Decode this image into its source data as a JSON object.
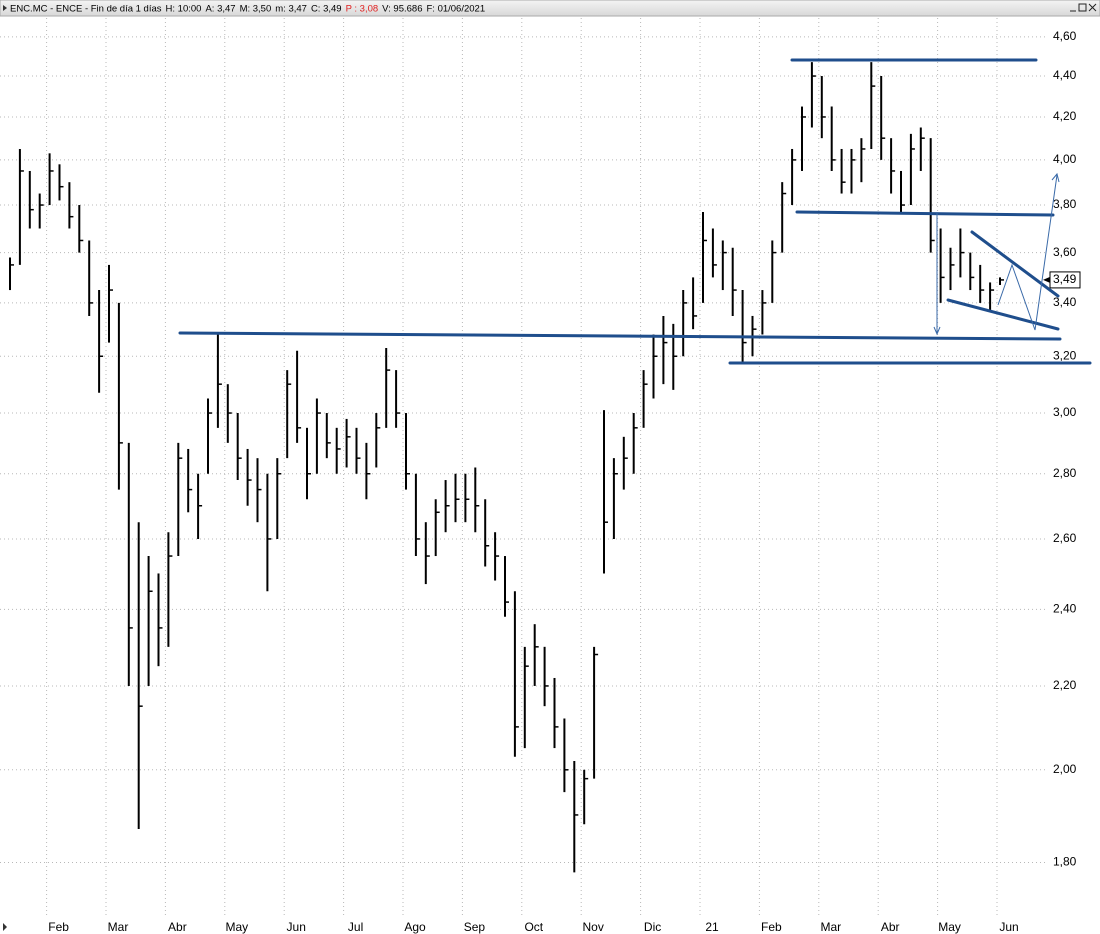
{
  "window": {
    "title_parts": [
      "ENC.MC - ENCE - Fin de día 1 días",
      "H: 10:00",
      "A: 3,47",
      "M: 3,50",
      "m: 3,47",
      "C: 3,49",
      "P : 3,08",
      "V: 95.686",
      "F: 01/06/2021"
    ],
    "highlight": "P : 3,08"
  },
  "chart_data": {
    "type": "ohlc",
    "log_scale": true,
    "grid": true,
    "color": "#000000",
    "categories": [
      null,
      null,
      null,
      null,
      "Feb",
      null,
      null,
      null,
      null,
      null,
      "Mar",
      null,
      null,
      null,
      null,
      null,
      "Abr",
      null,
      null,
      null,
      null,
      null,
      "May",
      null,
      null,
      null,
      null,
      null,
      "Jun",
      null,
      null,
      null,
      null,
      null,
      "Jul",
      null,
      null,
      null,
      null,
      null,
      "Ago",
      null,
      null,
      null,
      null,
      null,
      "Sep",
      null,
      null,
      null,
      null,
      null,
      "Oct",
      null,
      null,
      null,
      null,
      null,
      "Nov",
      null,
      null,
      null,
      null,
      null,
      "Dic",
      null,
      null,
      null,
      null,
      null,
      "21",
      null,
      null,
      null,
      null,
      null,
      "Feb",
      null,
      null,
      null,
      null,
      null,
      "Mar",
      null,
      null,
      null,
      null,
      null,
      "Abr",
      null,
      null,
      null,
      null,
      null,
      "May",
      null,
      null,
      null,
      null,
      null,
      "Jun"
    ],
    "series": [
      {
        "name": "High",
        "values": [
          3.58,
          4.05,
          3.95,
          3.85,
          4.03,
          3.98,
          3.9,
          3.8,
          3.65,
          3.45,
          3.55,
          3.4,
          2.9,
          2.65,
          2.55,
          2.5,
          2.62,
          2.9,
          2.88,
          2.8,
          3.05,
          3.28,
          3.1,
          3.0,
          2.88,
          2.85,
          2.8,
          2.85,
          3.15,
          3.22,
          2.95,
          3.05,
          3.0,
          2.95,
          2.98,
          2.95,
          2.9,
          3.0,
          3.23,
          3.15,
          3.0,
          2.8,
          2.65,
          2.72,
          2.78,
          2.8,
          2.8,
          2.82,
          2.72,
          2.62,
          2.55,
          2.45,
          2.3,
          2.36,
          2.3,
          2.22,
          2.12,
          2.02,
          2.0,
          2.3,
          3.01,
          2.85,
          2.92,
          3.0,
          3.15,
          3.28,
          3.35,
          3.32,
          3.45,
          3.5,
          3.77,
          3.7,
          3.65,
          3.62,
          3.45,
          3.35,
          3.45,
          3.65,
          3.9,
          4.05,
          4.25,
          4.47,
          4.4,
          4.25,
          4.05,
          4.05,
          4.1,
          4.47,
          4.4,
          4.1,
          3.95,
          4.12,
          4.15,
          4.1,
          3.7,
          3.62,
          3.7,
          3.6,
          3.55,
          3.48,
          3.5
        ]
      },
      {
        "name": "Low",
        "values": [
          3.45,
          3.55,
          3.7,
          3.7,
          3.8,
          3.82,
          3.7,
          3.6,
          3.35,
          3.07,
          3.25,
          2.75,
          2.2,
          1.87,
          2.2,
          2.25,
          2.3,
          2.55,
          2.68,
          2.6,
          2.8,
          2.95,
          2.9,
          2.78,
          2.7,
          2.65,
          2.45,
          2.6,
          2.85,
          2.9,
          2.72,
          2.8,
          2.85,
          2.8,
          2.82,
          2.8,
          2.72,
          2.82,
          2.95,
          2.95,
          2.75,
          2.55,
          2.47,
          2.55,
          2.62,
          2.65,
          2.65,
          2.62,
          2.52,
          2.48,
          2.38,
          2.03,
          2.05,
          2.2,
          2.15,
          2.05,
          1.95,
          1.78,
          1.88,
          1.98,
          2.5,
          2.6,
          2.75,
          2.8,
          2.95,
          3.05,
          3.1,
          3.08,
          3.2,
          3.3,
          3.4,
          3.5,
          3.45,
          3.35,
          3.18,
          3.2,
          3.28,
          3.4,
          3.6,
          3.8,
          3.95,
          4.15,
          4.1,
          3.95,
          3.85,
          3.85,
          3.9,
          4.05,
          4.0,
          3.85,
          3.76,
          3.8,
          3.95,
          3.6,
          3.4,
          3.45,
          3.5,
          3.45,
          3.4,
          3.37,
          3.47
        ]
      },
      {
        "name": "Close",
        "values": [
          3.55,
          3.95,
          3.78,
          3.8,
          3.95,
          3.88,
          3.75,
          3.65,
          3.4,
          3.2,
          3.45,
          2.9,
          2.35,
          2.15,
          2.45,
          2.35,
          2.55,
          2.85,
          2.75,
          2.7,
          3.0,
          3.1,
          3.0,
          2.85,
          2.78,
          2.75,
          2.6,
          2.8,
          3.1,
          2.95,
          2.8,
          3.0,
          2.9,
          2.88,
          2.92,
          2.85,
          2.8,
          2.95,
          3.15,
          3.0,
          2.8,
          2.6,
          2.55,
          2.68,
          2.7,
          2.72,
          2.72,
          2.7,
          2.58,
          2.55,
          2.42,
          2.1,
          2.25,
          2.3,
          2.2,
          2.1,
          2.0,
          1.9,
          1.98,
          2.28,
          2.65,
          2.8,
          2.85,
          2.95,
          3.1,
          3.2,
          3.25,
          3.2,
          3.4,
          3.35,
          3.65,
          3.55,
          3.6,
          3.45,
          3.25,
          3.3,
          3.4,
          3.6,
          3.85,
          4.0,
          4.2,
          4.4,
          4.2,
          4.0,
          3.9,
          4.0,
          4.05,
          4.35,
          4.1,
          3.95,
          3.8,
          4.05,
          4.1,
          3.65,
          3.5,
          3.55,
          3.6,
          3.5,
          3.45,
          3.45,
          3.49
        ]
      }
    ],
    "last_price": {
      "value": 3.49,
      "label": "3,49"
    },
    "ylim": [
      1.69,
      4.7
    ],
    "yticks": [
      {
        "value": 1.8,
        "label": "1,80"
      },
      {
        "value": 2.0,
        "label": "2,00"
      },
      {
        "value": 2.2,
        "label": "2,20"
      },
      {
        "value": 2.4,
        "label": "2,40"
      },
      {
        "value": 2.6,
        "label": "2,60"
      },
      {
        "value": 2.8,
        "label": "2,80"
      },
      {
        "value": 3.0,
        "label": "3,00"
      },
      {
        "value": 3.2,
        "label": "3,20"
      },
      {
        "value": 3.4,
        "label": "3,40"
      },
      {
        "value": 3.6,
        "label": "3,60"
      },
      {
        "value": 3.8,
        "label": "3,80"
      },
      {
        "value": 4.0,
        "label": "4,00"
      },
      {
        "value": 4.2,
        "label": "4,20"
      },
      {
        "value": 4.4,
        "label": "4,40"
      },
      {
        "value": 4.6,
        "label": "4,60"
      }
    ]
  }
}
